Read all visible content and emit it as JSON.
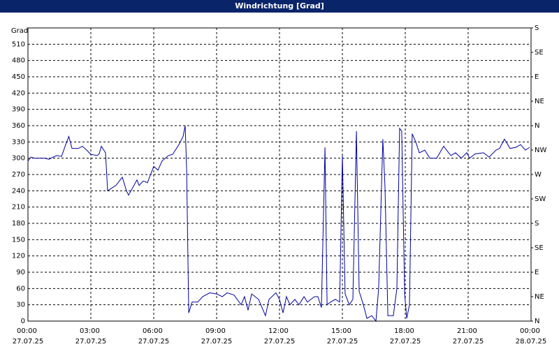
{
  "chart_data": {
    "type": "line",
    "title": "Windrichtung [Grad]",
    "ylabel": "Grad",
    "x": [
      0,
      0.15,
      0.3,
      0.5,
      0.8,
      1.0,
      1.2,
      1.4,
      1.6,
      1.8,
      1.95,
      2.1,
      2.4,
      2.6,
      2.8,
      3.0,
      3.3,
      3.4,
      3.5,
      3.7,
      3.8,
      4.2,
      4.5,
      4.7,
      4.8,
      5.2,
      5.3,
      5.5,
      5.7,
      6.0,
      6.2,
      6.4,
      6.7,
      6.9,
      7.2,
      7.4,
      7.5,
      7.57,
      7.67,
      7.83,
      8.1,
      8.33,
      8.67,
      9.0,
      9.27,
      9.5,
      9.83,
      10.17,
      10.33,
      10.5,
      10.67,
      11.0,
      11.33,
      11.5,
      11.83,
      12.0,
      12.17,
      12.33,
      12.5,
      12.73,
      12.93,
      13.17,
      13.33,
      13.67,
      13.83,
      14.0,
      14.17,
      14.27,
      14.43,
      14.67,
      14.87,
      15.0,
      15.13,
      15.33,
      15.5,
      15.67,
      15.8,
      16.0,
      16.17,
      16.4,
      16.6,
      16.73,
      16.93,
      17.03,
      17.17,
      17.43,
      17.6,
      17.73,
      17.83,
      17.97,
      18.07,
      18.2,
      18.33,
      18.5,
      18.67,
      18.93,
      19.17,
      19.5,
      19.83,
      20.17,
      20.4,
      20.67,
      20.93,
      21.07,
      21.33,
      21.73,
      22.0,
      22.33,
      22.5,
      22.73,
      23.0,
      23.27,
      23.5,
      23.73,
      23.93
    ],
    "series": [
      {
        "name": "Windrichtung",
        "color": "#0000a0",
        "values": [
          295,
          302,
          300,
          300,
          300,
          298,
          302,
          305,
          303,
          325,
          340,
          318,
          318,
          322,
          315,
          307,
          305,
          308,
          322,
          310,
          240,
          250,
          265,
          240,
          232,
          260,
          250,
          258,
          255,
          285,
          278,
          295,
          305,
          307,
          325,
          340,
          360,
          280,
          15,
          35,
          35,
          45,
          52,
          50,
          45,
          52,
          48,
          30,
          45,
          20,
          50,
          40,
          10,
          40,
          52,
          40,
          15,
          45,
          30,
          40,
          30,
          45,
          35,
          45,
          45,
          25,
          320,
          30,
          35,
          40,
          35,
          305,
          50,
          30,
          40,
          350,
          55,
          30,
          5,
          10,
          0,
          60,
          335,
          250,
          10,
          10,
          60,
          355,
          350,
          50,
          5,
          30,
          345,
          330,
          310,
          315,
          300,
          300,
          322,
          305,
          310,
          300,
          310,
          300,
          308,
          310,
          302,
          315,
          318,
          335,
          318,
          320,
          325,
          315,
          320
        ]
      }
    ],
    "xlim": [
      0,
      24
    ],
    "xticks": [
      {
        "value": 0,
        "label": "00:00 27.07.25"
      },
      {
        "value": 3,
        "label": "03:00 27.07.25"
      },
      {
        "value": 6,
        "label": "06:00 27.07.25"
      },
      {
        "value": 9,
        "label": "09:00 27.07.25"
      },
      {
        "value": 12,
        "label": "12:00 27.07.25"
      },
      {
        "value": 15,
        "label": "15:00 27.07.25"
      },
      {
        "value": 18,
        "label": "18:00 27.07.25"
      },
      {
        "value": 21,
        "label": "21:00 27.07.25"
      },
      {
        "value": 24,
        "label": "00:00 28.07.25"
      }
    ],
    "ylim": [
      0,
      540
    ],
    "yticks": [
      0,
      30,
      60,
      90,
      120,
      150,
      180,
      210,
      240,
      270,
      300,
      330,
      360,
      390,
      420,
      450,
      480,
      510
    ],
    "y2lim": [
      0,
      540
    ],
    "y2ticks": [
      {
        "value": 0,
        "label": "N"
      },
      {
        "value": 45,
        "label": "NE"
      },
      {
        "value": 90,
        "label": "E"
      },
      {
        "value": 135,
        "label": "SE"
      },
      {
        "value": 180,
        "label": "S"
      },
      {
        "value": 225,
        "label": "SW"
      },
      {
        "value": 270,
        "label": "W"
      },
      {
        "value": 315,
        "label": "NW"
      },
      {
        "value": 360,
        "label": "N"
      },
      {
        "value": 405,
        "label": "NE"
      },
      {
        "value": 450,
        "label": "E"
      },
      {
        "value": 495,
        "label": "SE"
      },
      {
        "value": 540,
        "label": "S"
      }
    ],
    "grid": true
  }
}
